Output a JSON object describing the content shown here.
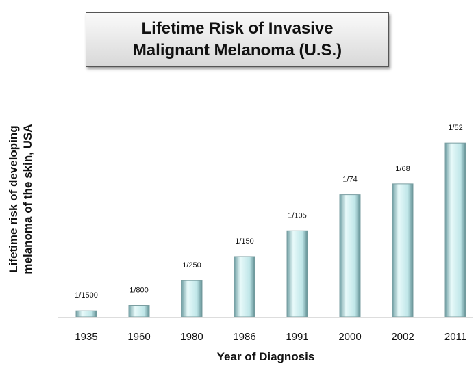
{
  "chart_data": {
    "type": "bar",
    "title": "Lifetime Risk of Invasive Malignant Melanoma (U.S.)",
    "y_label": "Lifetime risk of developing melanoma of the skin, USA",
    "x_label": "Year of Diagnosis",
    "categories": [
      "1935",
      "1960",
      "1980",
      "1986",
      "1991",
      "2000",
      "2002",
      "2011"
    ],
    "values": [
      0.000667,
      0.00125,
      0.004,
      0.006667,
      0.009524,
      0.013514,
      0.014706,
      0.019231
    ],
    "value_labels": [
      "1/1500",
      "1/800",
      "1/250",
      "1/150",
      "1/105",
      "1/74",
      "1/68",
      "1/52"
    ],
    "color": "#bfe6e8",
    "ylim": [
      0,
      0.02
    ]
  }
}
